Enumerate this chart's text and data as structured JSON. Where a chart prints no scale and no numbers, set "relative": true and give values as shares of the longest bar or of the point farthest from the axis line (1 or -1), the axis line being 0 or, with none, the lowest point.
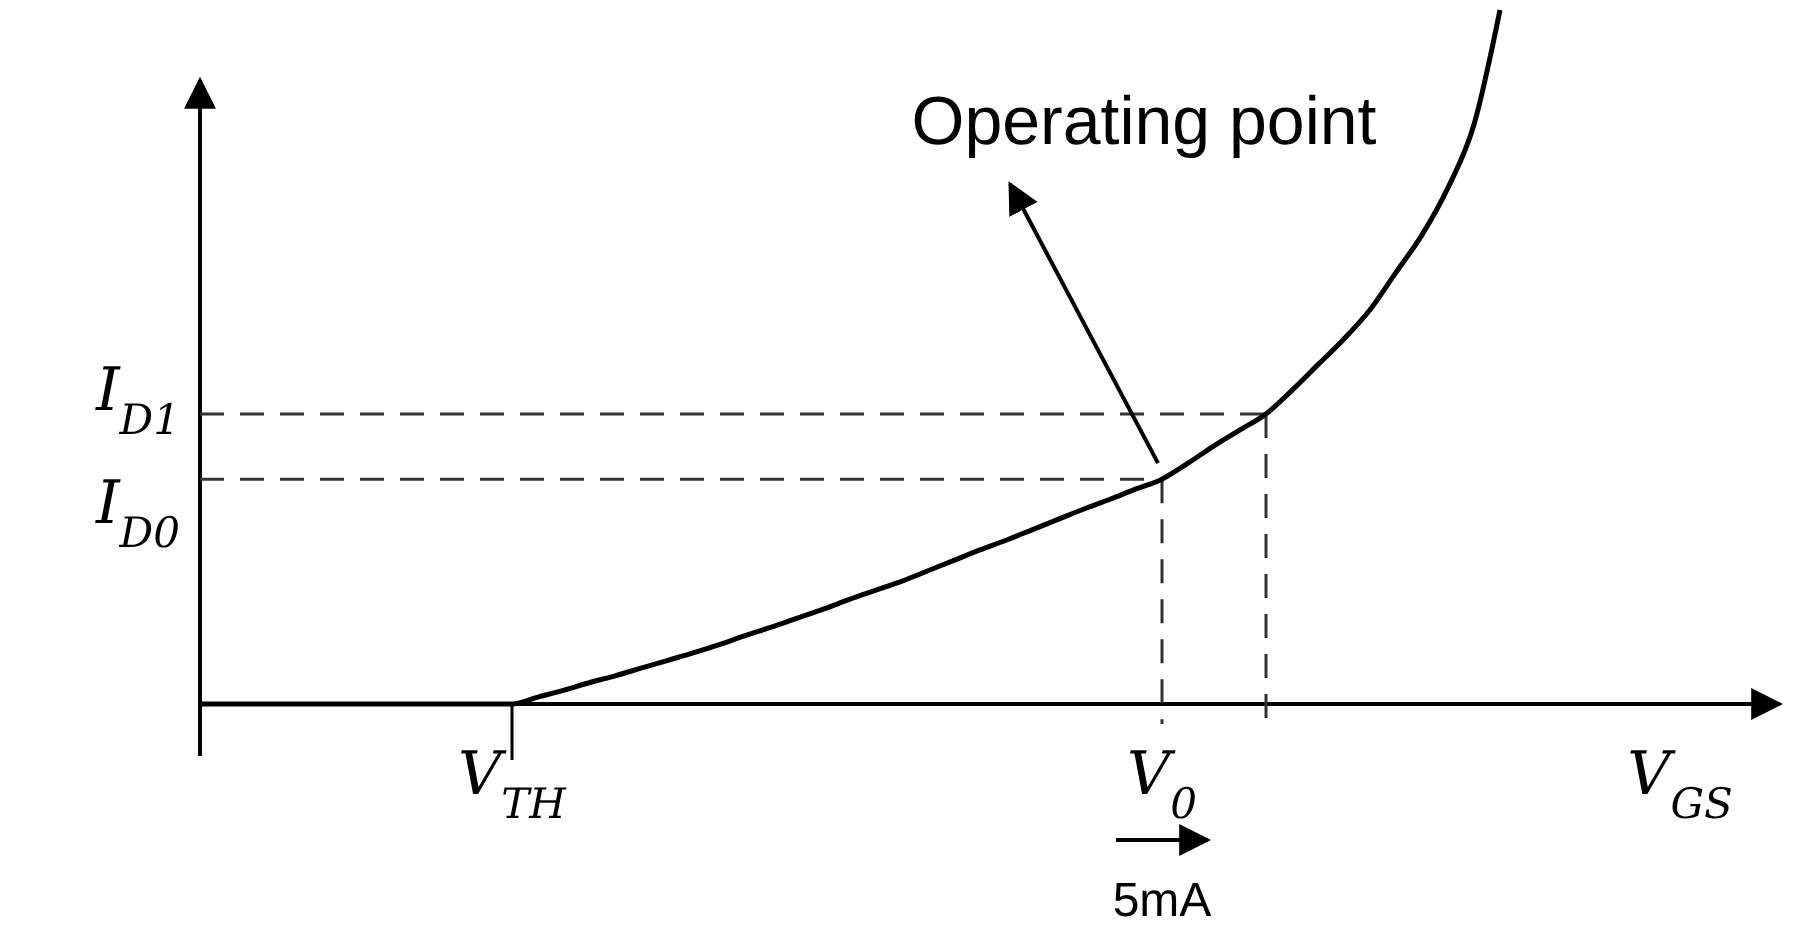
{
  "chart_data": {
    "type": "line",
    "relative": true,
    "xlabel": "V$_{GS}$",
    "categories": [
      null,
      null,
      null,
      null,
      null,
      null,
      null,
      null,
      null,
      null,
      null,
      null,
      "V$_{TH}$",
      null,
      null,
      null,
      null,
      null,
      null,
      null,
      null,
      null,
      null,
      null,
      null,
      null,
      null,
      null,
      null,
      null,
      null,
      null,
      null,
      null,
      null,
      null,
      null,
      "V$_{0}$",
      null,
      null,
      null,
      null,
      null,
      null,
      null,
      null,
      null,
      null,
      null,
      null,
      null
    ],
    "series": [
      {
        "color": "#000000",
        "values": [
          0,
          0,
          0,
          0,
          0,
          0,
          0,
          0,
          0,
          0,
          0,
          0,
          0,
          0.01,
          0.02,
          0.031,
          0.041,
          0.052,
          0.063,
          0.074,
          0.086,
          0.099,
          0.111,
          0.124,
          0.137,
          0.151,
          0.164,
          0.177,
          0.192,
          0.207,
          0.222,
          0.236,
          0.251,
          0.266,
          0.281,
          0.295,
          0.31,
          0.324,
          0.347,
          0.372,
          0.395,
          0.418,
          0.452,
          0.489,
          0.526,
          0.568,
          0.622,
          0.676,
          0.744,
          0.835,
          1
        ]
      }
    ],
    "ref_lines": [
      {
        "axis": "y",
        "value": 0.418,
        "label": "I$_{D1}$",
        "line_style": "dashed"
      },
      {
        "axis": "y",
        "value": 0.324,
        "label": "I$_{D0}$",
        "line_style": "dashed"
      },
      {
        "axis": "x",
        "value": "V$_{0}$",
        "label": null,
        "line_style": "dashed"
      }
    ],
    "annotations": [
      {
        "text": "Operating point",
        "x": "V$_{0}$",
        "y": 0.324
      },
      "5mA"
    ],
    "line_style": "solid",
    "grid": false
  }
}
